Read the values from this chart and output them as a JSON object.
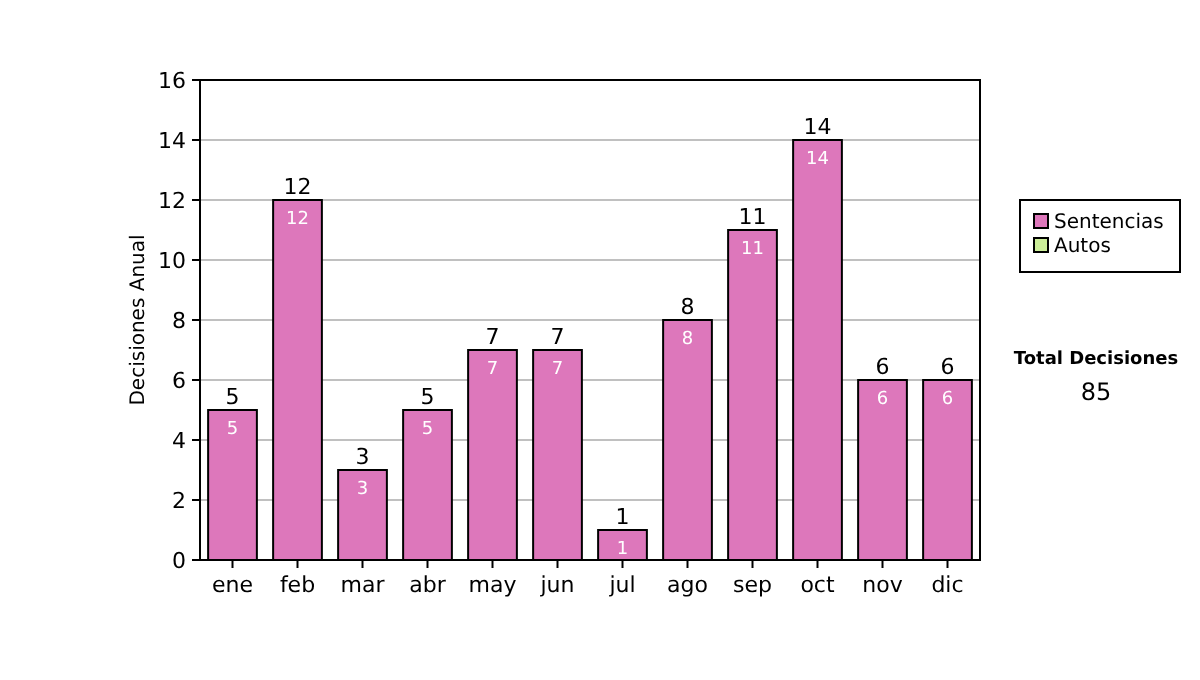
{
  "chart_data": {
    "type": "bar",
    "stacked": true,
    "ylabel": "Decisiones Anual",
    "categories": [
      "ene",
      "feb",
      "mar",
      "abr",
      "may",
      "jun",
      "jul",
      "ago",
      "sep",
      "oct",
      "nov",
      "dic"
    ],
    "series": [
      {
        "name": "Sentencias",
        "color": "#dd77bb",
        "values": [
          5,
          12,
          3,
          5,
          7,
          7,
          1,
          8,
          11,
          14,
          6,
          6
        ]
      },
      {
        "name": "Autos",
        "color": "#ccee99",
        "values": [
          null,
          null,
          null,
          null,
          null,
          null,
          null,
          null,
          null,
          null,
          null,
          null
        ]
      }
    ],
    "totals": [
      "5",
      "12",
      "3",
      "5",
      "7",
      "7",
      "1",
      "8",
      "11",
      "14",
      "6",
      "6"
    ],
    "data_labels": true,
    "ylim": [
      0,
      16
    ],
    "yticks": [
      0,
      2,
      4,
      6,
      8,
      10,
      12,
      14,
      16
    ],
    "grid": "y",
    "legend": "right",
    "annotations": [
      "Total Decisiones",
      "85"
    ]
  }
}
